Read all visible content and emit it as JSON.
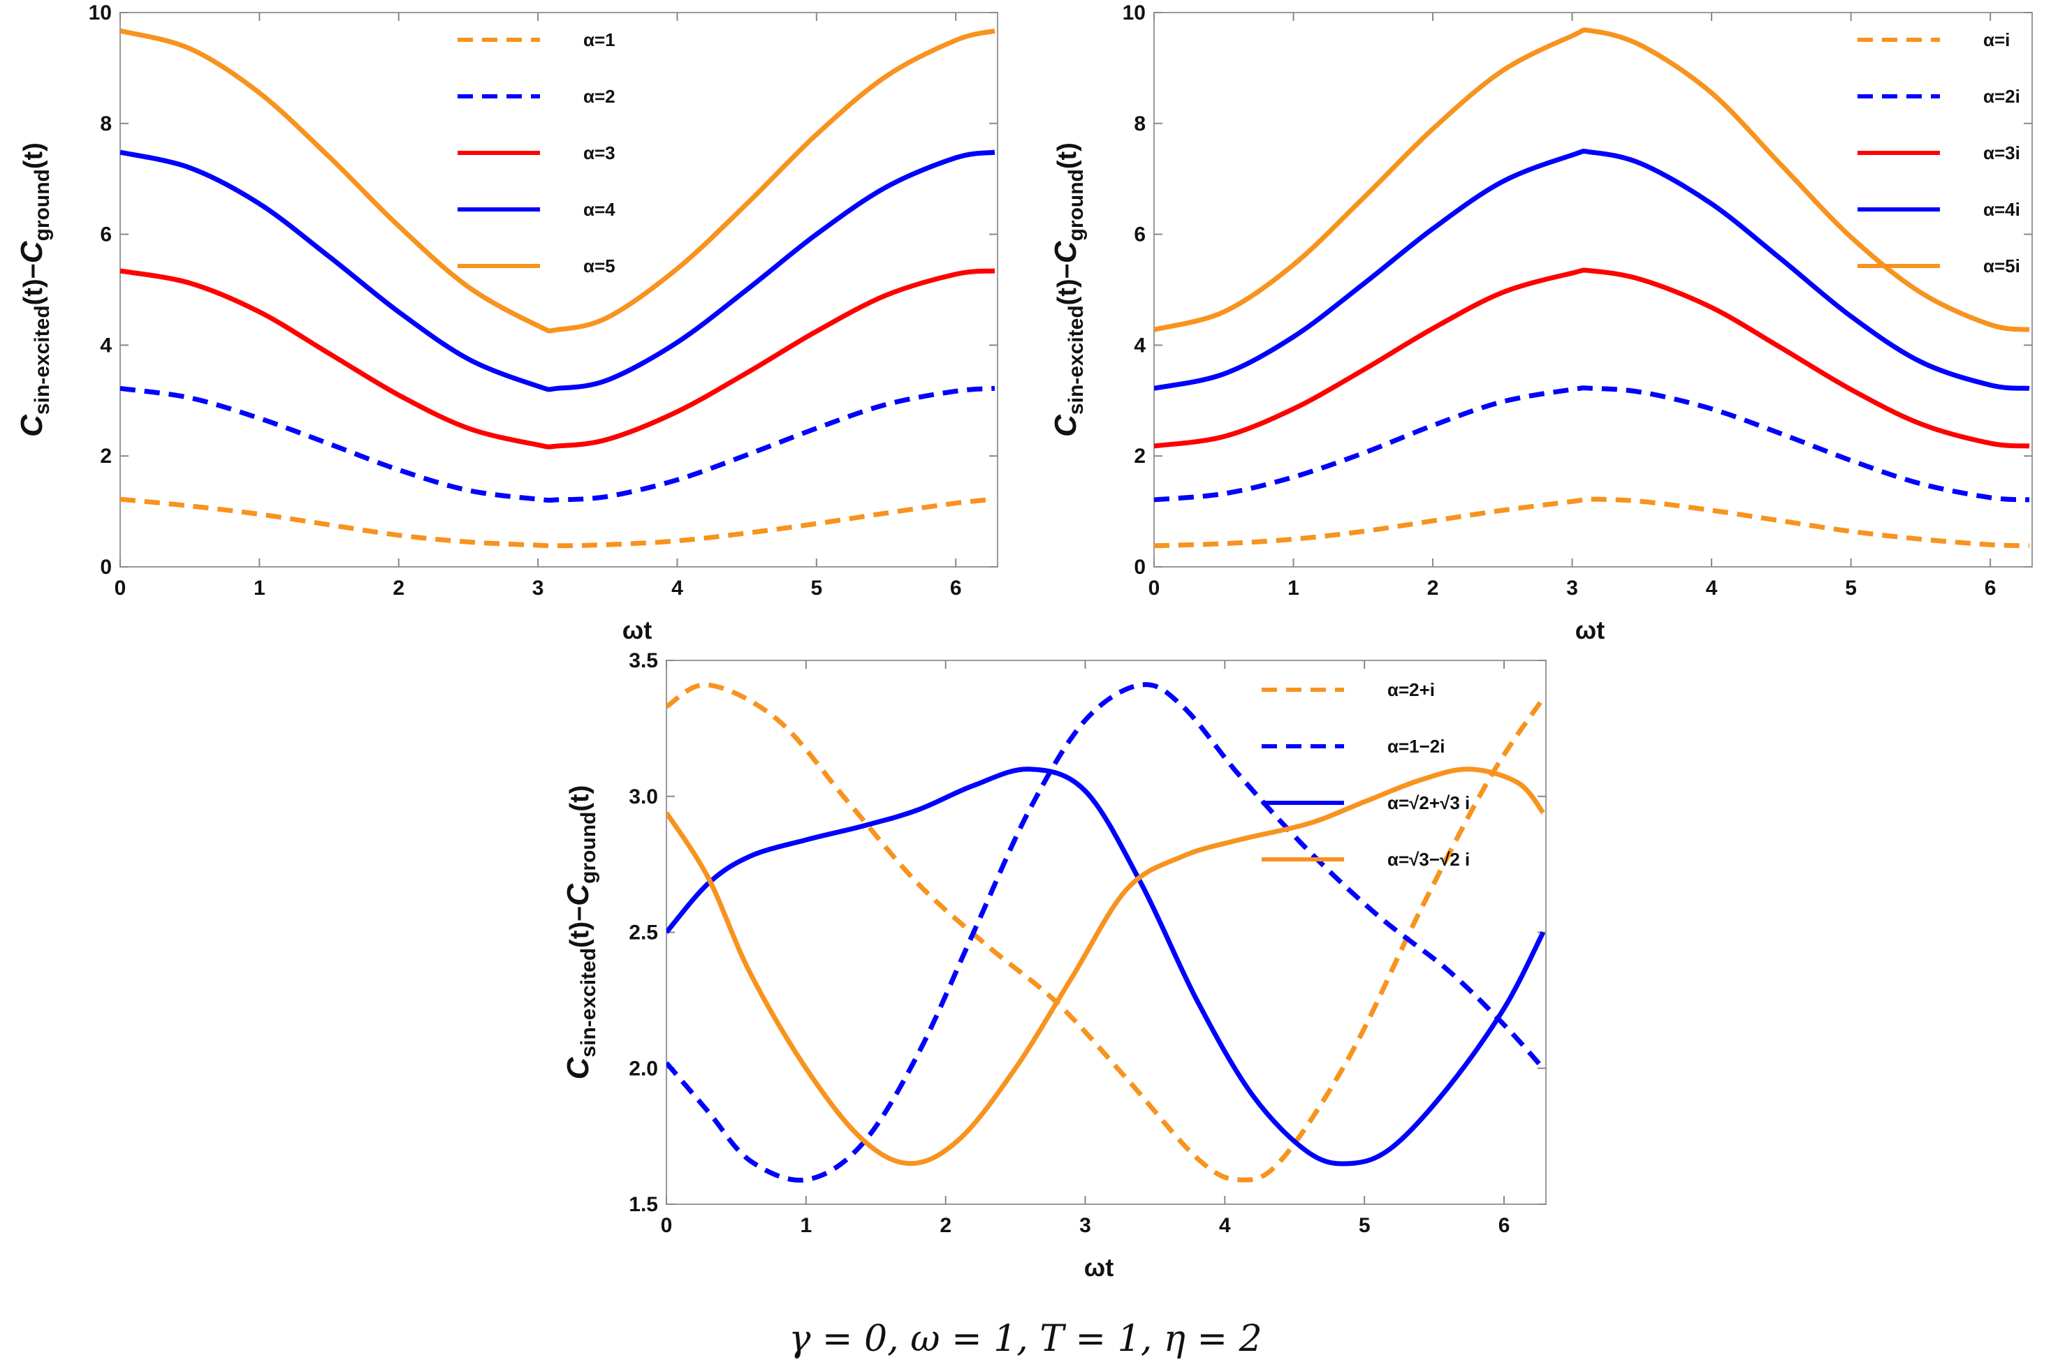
{
  "chart_data": [
    {
      "type": "line",
      "title": "",
      "xlabel": "ωt",
      "ylabel": "C_sin-excited(t)−C_ground(t)",
      "xlim": [
        0,
        6.3
      ],
      "ylim": [
        0,
        10
      ],
      "xticks": [
        "0",
        "1",
        "2",
        "3",
        "4",
        "5",
        "6"
      ],
      "yticks": [
        "0",
        "2",
        "4",
        "6",
        "8",
        "10"
      ],
      "legend_position": "top-right",
      "series": [
        {
          "name": "α=1",
          "style": "dashed",
          "color": "#F7931E",
          "x": [
            0,
            0.5,
            1,
            1.5,
            2,
            2.5,
            3,
            3.14,
            3.5,
            4,
            4.5,
            5,
            5.5,
            6,
            6.28
          ],
          "values": [
            1.22,
            1.1,
            0.95,
            0.76,
            0.57,
            0.45,
            0.39,
            0.38,
            0.4,
            0.47,
            0.61,
            0.78,
            0.97,
            1.15,
            1.22
          ]
        },
        {
          "name": "α=2",
          "style": "dashed",
          "color": "#0000FF",
          "x": [
            0,
            0.5,
            1,
            1.5,
            2,
            2.5,
            3,
            3.14,
            3.5,
            4,
            4.5,
            5,
            5.5,
            6,
            6.28
          ],
          "values": [
            3.22,
            3.05,
            2.68,
            2.22,
            1.75,
            1.38,
            1.22,
            1.21,
            1.27,
            1.57,
            2.02,
            2.5,
            2.93,
            3.17,
            3.22
          ]
        },
        {
          "name": "α=3",
          "style": "solid",
          "color": "#FF0000",
          "x": [
            0,
            0.5,
            1,
            1.5,
            2,
            2.5,
            3,
            3.14,
            3.5,
            4,
            4.5,
            5,
            5.5,
            6,
            6.28
          ],
          "values": [
            5.34,
            5.12,
            4.6,
            3.85,
            3.1,
            2.5,
            2.2,
            2.18,
            2.3,
            2.8,
            3.5,
            4.25,
            4.9,
            5.28,
            5.34
          ]
        },
        {
          "name": "α=4",
          "style": "solid",
          "color": "#0000FF",
          "x": [
            0,
            0.5,
            1,
            1.5,
            2,
            2.5,
            3,
            3.14,
            3.5,
            4,
            4.5,
            5,
            5.5,
            6,
            6.28
          ],
          "values": [
            7.48,
            7.2,
            6.55,
            5.6,
            4.6,
            3.75,
            3.26,
            3.22,
            3.37,
            4.05,
            5.0,
            6.0,
            6.85,
            7.38,
            7.48
          ]
        },
        {
          "name": "α=5",
          "style": "solid",
          "color": "#F7931E",
          "x": [
            0,
            0.5,
            1,
            1.5,
            2,
            2.5,
            3,
            3.14,
            3.5,
            4,
            4.5,
            5,
            5.5,
            6,
            6.28
          ],
          "values": [
            9.67,
            9.35,
            8.55,
            7.4,
            6.15,
            5.05,
            4.35,
            4.28,
            4.5,
            5.38,
            6.55,
            7.8,
            8.85,
            9.5,
            9.67
          ]
        }
      ]
    },
    {
      "type": "line",
      "title": "",
      "xlabel": "ωt",
      "ylabel": "C_sin-excited(t)−C_ground(t)",
      "xlim": [
        0,
        6.3
      ],
      "ylim": [
        0,
        10
      ],
      "xticks": [
        "0",
        "1",
        "2",
        "3",
        "4",
        "5",
        "6"
      ],
      "yticks": [
        "0",
        "2",
        "4",
        "6",
        "8",
        "10"
      ],
      "legend_position": "top-right",
      "series": [
        {
          "name": "α=i",
          "style": "dashed",
          "color": "#F7931E",
          "x": [
            0,
            0.5,
            1,
            1.5,
            2,
            2.5,
            3,
            3.14,
            3.5,
            4,
            4.5,
            5,
            5.5,
            6,
            6.28
          ],
          "values": [
            0.38,
            0.42,
            0.5,
            0.64,
            0.83,
            1.02,
            1.18,
            1.22,
            1.18,
            1.02,
            0.83,
            0.64,
            0.5,
            0.4,
            0.38
          ]
        },
        {
          "name": "α=2i",
          "style": "dashed",
          "color": "#0000FF",
          "x": [
            0,
            0.5,
            1,
            1.5,
            2,
            2.5,
            3,
            3.14,
            3.5,
            4,
            4.5,
            5,
            5.5,
            6,
            6.28
          ],
          "values": [
            1.21,
            1.32,
            1.62,
            2.05,
            2.55,
            2.98,
            3.2,
            3.22,
            3.15,
            2.85,
            2.4,
            1.92,
            1.5,
            1.25,
            1.21
          ]
        },
        {
          "name": "α=3i",
          "style": "solid",
          "color": "#FF0000",
          "x": [
            0,
            0.5,
            1,
            1.5,
            2,
            2.5,
            3,
            3.14,
            3.5,
            4,
            4.5,
            5,
            5.5,
            6,
            6.28
          ],
          "values": [
            2.18,
            2.35,
            2.85,
            3.55,
            4.3,
            4.95,
            5.3,
            5.34,
            5.18,
            4.68,
            3.95,
            3.2,
            2.58,
            2.23,
            2.18
          ]
        },
        {
          "name": "α=4i",
          "style": "solid",
          "color": "#0000FF",
          "x": [
            0,
            0.5,
            1,
            1.5,
            2,
            2.5,
            3,
            3.14,
            3.5,
            4,
            4.5,
            5,
            5.5,
            6,
            6.28
          ],
          "values": [
            3.22,
            3.48,
            4.15,
            5.1,
            6.1,
            6.95,
            7.43,
            7.48,
            7.27,
            6.55,
            5.55,
            4.52,
            3.7,
            3.28,
            3.22
          ]
        },
        {
          "name": "α=5i",
          "style": "solid",
          "color": "#F7931E",
          "x": [
            0,
            0.5,
            1,
            1.5,
            2,
            2.5,
            3,
            3.14,
            3.5,
            4,
            4.5,
            5,
            5.5,
            6,
            6.28
          ],
          "values": [
            4.28,
            4.6,
            5.45,
            6.65,
            7.9,
            8.95,
            9.58,
            9.67,
            9.4,
            8.55,
            7.25,
            5.95,
            4.95,
            4.37,
            4.28
          ]
        }
      ]
    },
    {
      "type": "line",
      "title": "",
      "xlabel": "ωt",
      "ylabel": "C_sin-excited(t)−C_ground(t)",
      "xlim": [
        0,
        6.3
      ],
      "ylim": [
        1.5,
        3.5
      ],
      "xticks": [
        "0",
        "1",
        "2",
        "3",
        "4",
        "5",
        "6"
      ],
      "yticks": [
        "1.5",
        "2.0",
        "2.5",
        "3.0",
        "3.5"
      ],
      "legend_position": "top-right",
      "series": [
        {
          "name": "α=2+i",
          "style": "dashed",
          "color": "#F7931E",
          "x": [
            0,
            0.3,
            0.8,
            1.3,
            1.8,
            2.3,
            2.8,
            3.3,
            3.8,
            4.1,
            4.4,
            4.9,
            5.4,
            5.9,
            6.28
          ],
          "values": [
            3.33,
            3.41,
            3.28,
            2.98,
            2.68,
            2.45,
            2.24,
            1.96,
            1.67,
            1.59,
            1.66,
            2.05,
            2.58,
            3.07,
            3.36
          ]
        },
        {
          "name": "α=1−2i",
          "style": "dashed",
          "color": "#0000FF",
          "x": [
            0,
            0.3,
            0.6,
            1.0,
            1.4,
            1.8,
            2.2,
            2.6,
            3.0,
            3.4,
            3.7,
            4.1,
            4.6,
            5.1,
            5.6,
            6.0,
            6.28
          ],
          "values": [
            2.02,
            1.84,
            1.66,
            1.59,
            1.72,
            2.05,
            2.5,
            2.95,
            3.28,
            3.41,
            3.33,
            3.08,
            2.8,
            2.56,
            2.36,
            2.16,
            2.0
          ]
        },
        {
          "name": "α=√2+√3 i",
          "style": "solid",
          "color": "#0000FF",
          "x": [
            0,
            0.3,
            0.6,
            1.0,
            1.4,
            1.8,
            2.2,
            2.6,
            3.0,
            3.4,
            3.8,
            4.2,
            4.6,
            4.9,
            5.2,
            5.6,
            6.0,
            6.28
          ],
          "values": [
            2.5,
            2.68,
            2.78,
            2.84,
            2.89,
            2.95,
            3.04,
            3.1,
            3.02,
            2.68,
            2.25,
            1.9,
            1.69,
            1.65,
            1.71,
            1.93,
            2.22,
            2.5
          ]
        },
        {
          "name": "α=√3−√2 i",
          "style": "solid",
          "color": "#F7931E",
          "x": [
            0,
            0.3,
            0.6,
            1.0,
            1.4,
            1.75,
            2.1,
            2.5,
            2.9,
            3.3,
            3.7,
            4.1,
            4.6,
            5.0,
            5.4,
            5.75,
            6.1,
            6.28
          ],
          "values": [
            2.94,
            2.7,
            2.35,
            2.0,
            1.74,
            1.65,
            1.74,
            2.0,
            2.33,
            2.66,
            2.78,
            2.84,
            2.9,
            2.98,
            3.06,
            3.1,
            3.05,
            2.94
          ]
        }
      ]
    }
  ],
  "caption": "γ = 0, ω = 1, T = 1, η = 2"
}
